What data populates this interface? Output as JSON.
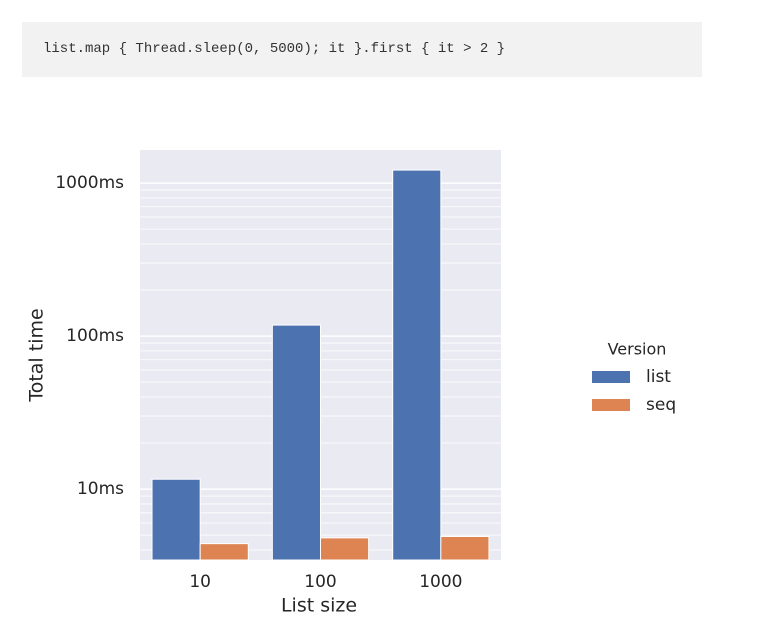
{
  "code": "list.map { Thread.sleep(0, 5000); it }.first { it > 2 }",
  "chart_data": {
    "type": "bar",
    "xlabel": "List size",
    "ylabel": "Total time",
    "categories": [
      "10",
      "100",
      "1000"
    ],
    "series": [
      {
        "name": "list",
        "color": "#4c72b0",
        "values": [
          11.6,
          118,
          1216
        ]
      },
      {
        "name": "seq",
        "color": "#dd8452",
        "values": [
          4.4,
          4.8,
          4.9
        ]
      }
    ],
    "log_y": true,
    "ylim": [
      3.44,
      1645
    ],
    "yticks": [
      {
        "value": 10,
        "label": "10ms"
      },
      {
        "value": 100,
        "label": "100ms"
      },
      {
        "value": 1000,
        "label": "1000ms"
      }
    ],
    "yminorticks": [
      4,
      5,
      6,
      7,
      8,
      9,
      20,
      30,
      40,
      50,
      60,
      70,
      80,
      90,
      200,
      300,
      400,
      500,
      600,
      700,
      800,
      900
    ],
    "grid": true,
    "legend_title": "Version",
    "legend_position": "right"
  }
}
